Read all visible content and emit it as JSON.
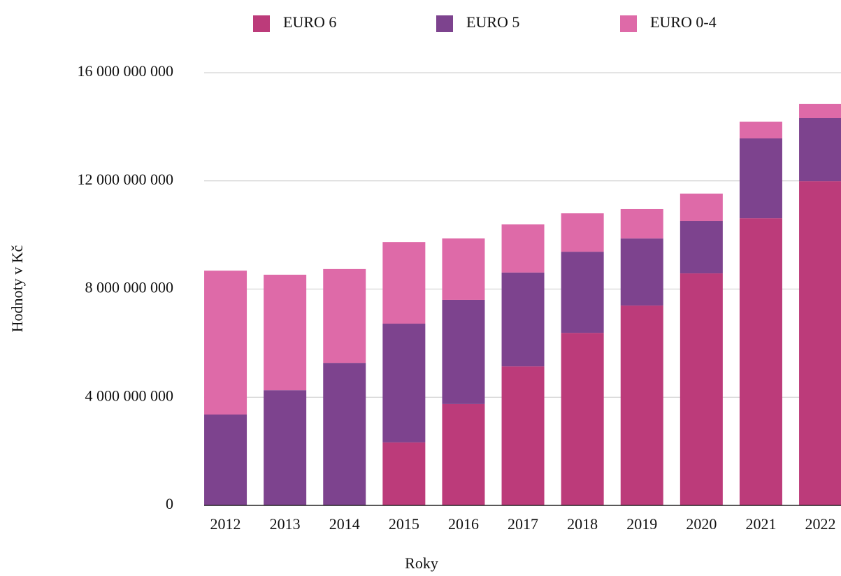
{
  "chart_data": {
    "type": "stacked_bar",
    "categories": [
      "2012",
      "2013",
      "2014",
      "2015",
      "2016",
      "2017",
      "2018",
      "2019",
      "2020",
      "2021",
      "2022"
    ],
    "series": [
      {
        "name": "EURO 6",
        "color": "#bc3b7a",
        "values": [
          0,
          0,
          0,
          2330000000,
          3750000000,
          5140000000,
          6380000000,
          7390000000,
          8580000000,
          10620000000,
          11990000000
        ]
      },
      {
        "name": "EURO 5",
        "color": "#7d438e",
        "values": [
          3360000000,
          4260000000,
          5270000000,
          4390000000,
          3850000000,
          3470000000,
          3000000000,
          2480000000,
          1940000000,
          2950000000,
          2330000000
        ]
      },
      {
        "name": "EURO 0-4",
        "color": "#de6aa8",
        "values": [
          5320000000,
          4270000000,
          3470000000,
          3020000000,
          2270000000,
          1780000000,
          1420000000,
          1090000000,
          1010000000,
          620000000,
          520000000
        ]
      }
    ],
    "ylim": [
      0,
      16000000000
    ],
    "yticks": [
      0,
      {
        "value": 4000000000,
        "label": "4 000 000 000"
      },
      {
        "value": 8000000000,
        "label": "8 000 000 000"
      },
      {
        "value": 12000000000,
        "label": "12 000 000 000"
      },
      {
        "value": 16000000000,
        "label": "16 000 000 000"
      }
    ],
    "xlabel": "Roky",
    "ylabel": "Hodnoty v Kč",
    "grid": true,
    "legend": "top"
  }
}
